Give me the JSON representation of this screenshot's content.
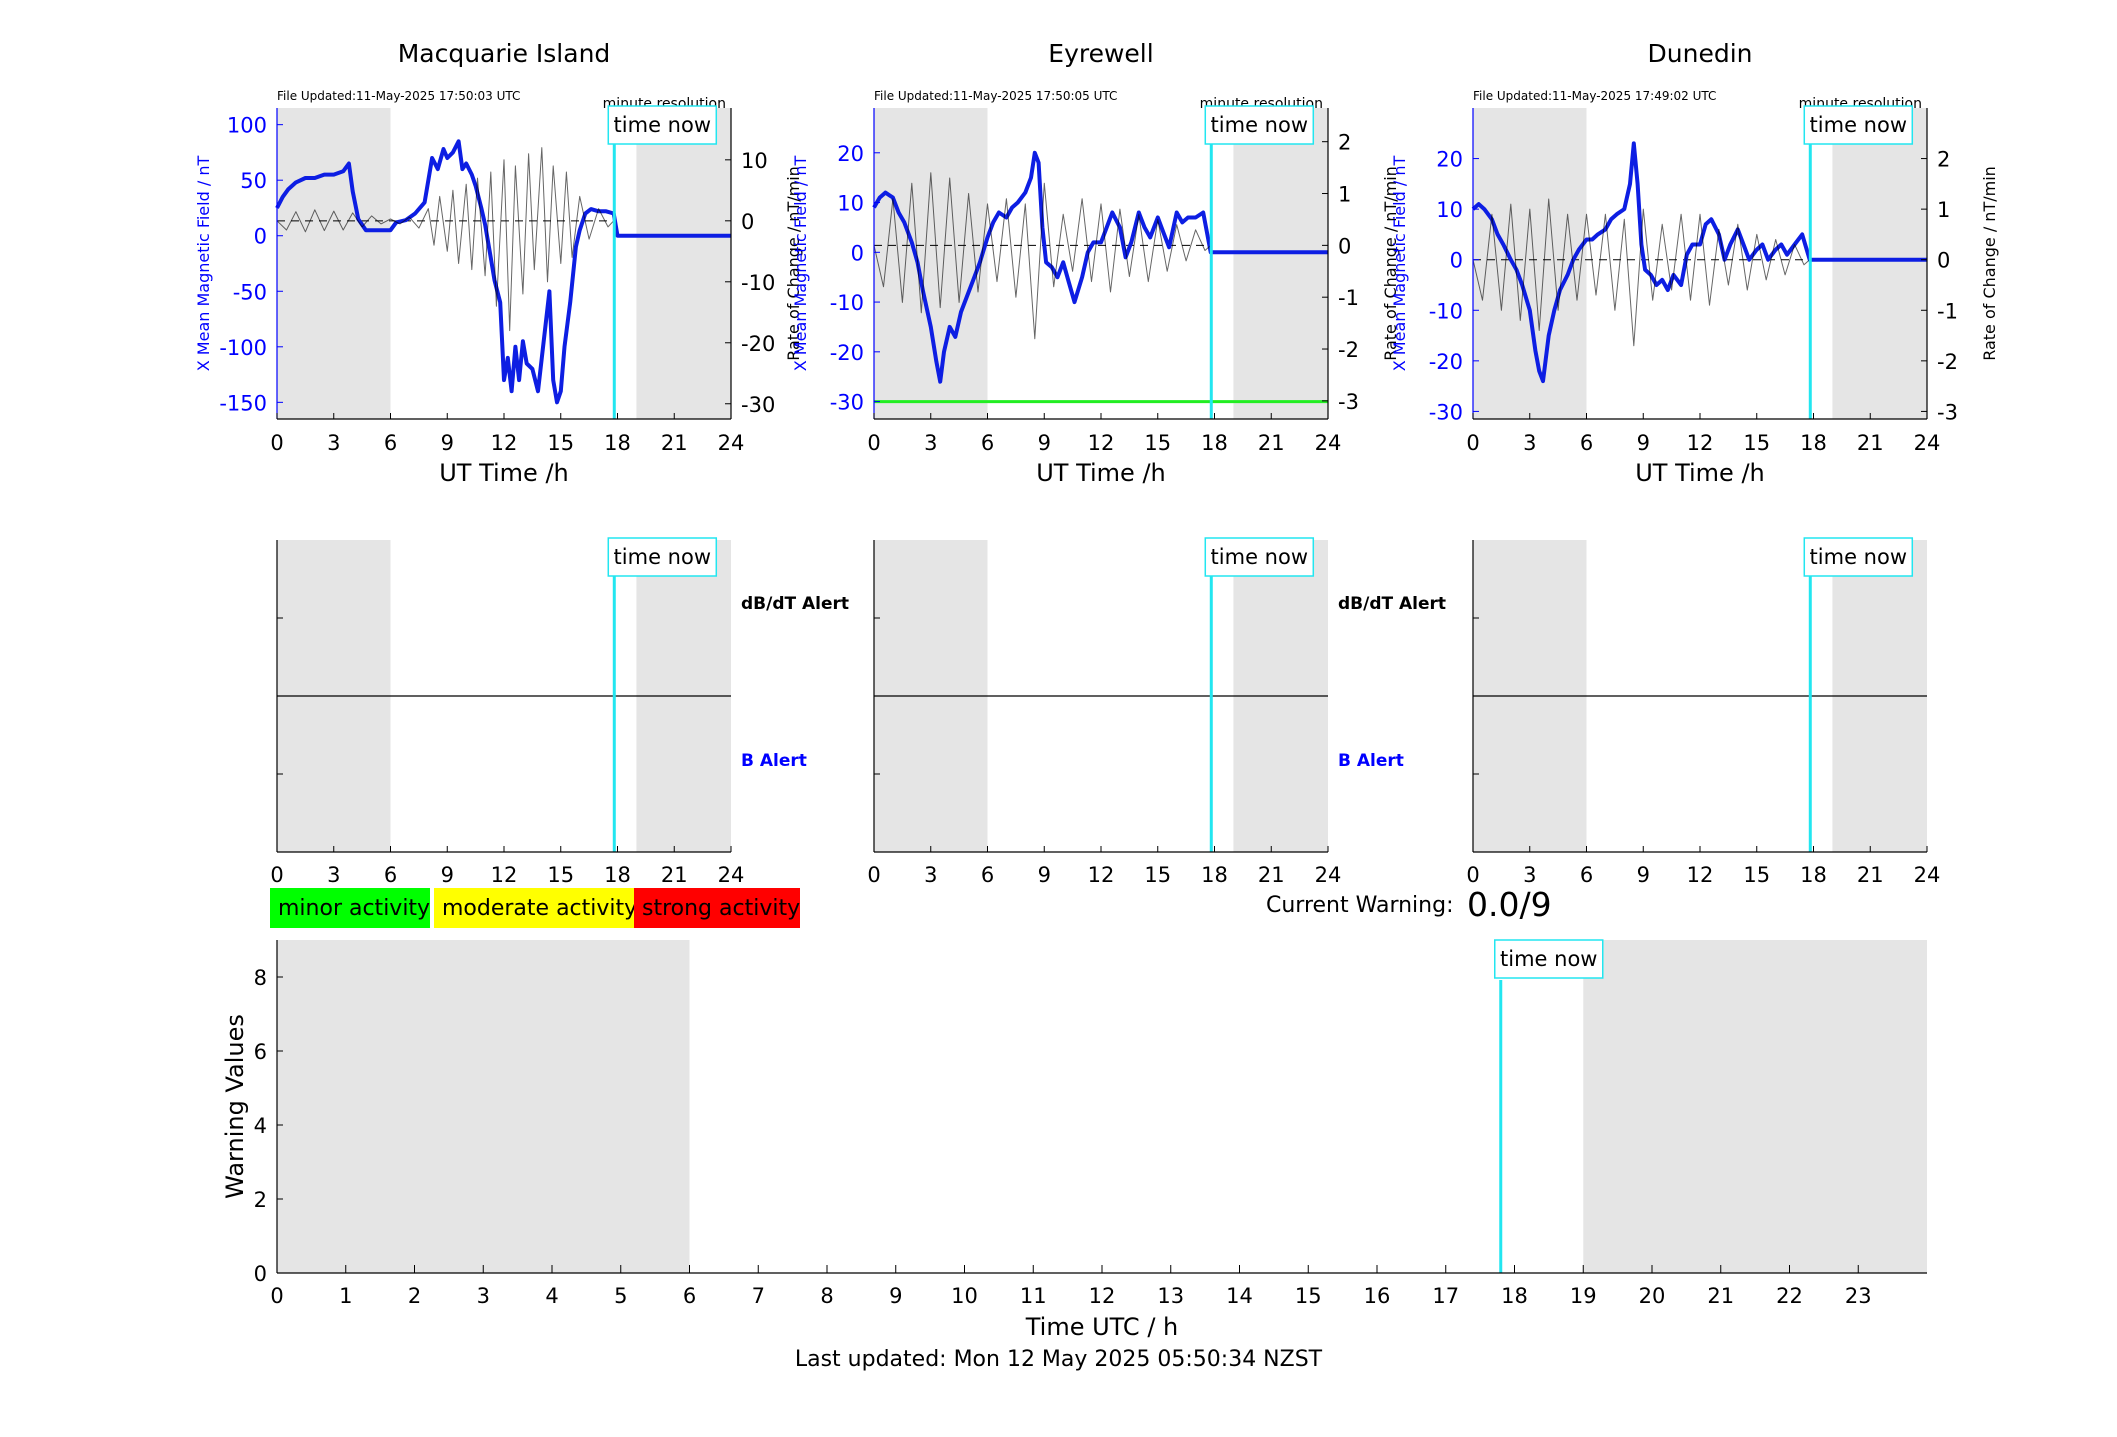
{
  "chart_data": [
    {
      "type": "line",
      "station": "Macquarie Island",
      "title": "Macquarie Island",
      "file_updated": "File Updated:11-May-2025 17:50:03 UTC",
      "resolution_label": "minute resolution",
      "time_now_label": "time now",
      "xlabel": "UT Time /h",
      "ylabel_left": "X Mean Magnetic Field / nT",
      "ylabel_right": "Rate of Change / nT/min",
      "xlim": [
        0,
        24
      ],
      "xticks": [
        0,
        3,
        6,
        9,
        12,
        15,
        18,
        21,
        24
      ],
      "ylim_left": [
        -165,
        115
      ],
      "yticks_left": [
        100,
        50,
        0,
        -50,
        -100,
        -150
      ],
      "ylim_right": [
        -32.5,
        18.5
      ],
      "yticks_right": [
        10,
        0,
        -10,
        -20,
        -30
      ],
      "night_shading": [
        [
          0,
          6
        ],
        [
          19,
          24
        ]
      ],
      "time_now": 17.83,
      "grid": false,
      "series": [
        {
          "name": "X Mean Magnetic Field",
          "axis": "left",
          "color": "#0d1ee3",
          "x": [
            0,
            0.3,
            0.6,
            1,
            1.5,
            2,
            2.5,
            3,
            3.5,
            3.8,
            4,
            4.3,
            4.7,
            5,
            5.5,
            6,
            6.3,
            6.8,
            7.3,
            7.8,
            8.2,
            8.5,
            8.8,
            9,
            9.3,
            9.6,
            9.8,
            10,
            10.3,
            10.5,
            10.8,
            11,
            11.3,
            11.5,
            11.8,
            12,
            12.2,
            12.4,
            12.6,
            12.8,
            13,
            13.2,
            13.5,
            13.8,
            14,
            14.2,
            14.4,
            14.6,
            14.8,
            15,
            15.2,
            15.5,
            15.8,
            16,
            16.3,
            16.6,
            17,
            17.4,
            17.8,
            18,
            19,
            20,
            21,
            22,
            23,
            24
          ],
          "values": [
            25,
            35,
            42,
            48,
            52,
            52,
            55,
            55,
            58,
            65,
            40,
            15,
            5,
            5,
            5,
            5,
            12,
            14,
            20,
            30,
            70,
            60,
            78,
            70,
            75,
            85,
            60,
            65,
            55,
            45,
            25,
            10,
            -20,
            -40,
            -60,
            -130,
            -110,
            -140,
            -100,
            -130,
            -95,
            -115,
            -120,
            -140,
            -110,
            -80,
            -50,
            -130,
            -150,
            -140,
            -100,
            -60,
            -10,
            5,
            20,
            24,
            22,
            22,
            20,
            0,
            0,
            0,
            0,
            0,
            0,
            0
          ]
        },
        {
          "name": "Rate of Change",
          "axis": "right",
          "color": "#000000",
          "x": [
            0,
            0.5,
            1,
            1.5,
            2,
            2.5,
            3,
            3.5,
            4,
            4.5,
            5,
            5.5,
            6,
            6.5,
            7,
            7.5,
            8,
            8.3,
            8.6,
            9,
            9.3,
            9.6,
            10,
            10.3,
            10.6,
            11,
            11.3,
            11.6,
            12,
            12.3,
            12.6,
            13,
            13.3,
            13.6,
            14,
            14.3,
            14.6,
            15,
            15.3,
            15.6,
            16,
            16.5,
            17,
            17.5,
            17.8
          ],
          "values": [
            0,
            -1.5,
            1.5,
            -1.8,
            1.8,
            -1.6,
            1.6,
            -1.5,
            1.3,
            -1,
            0.8,
            -0.5,
            0.3,
            -0.5,
            0.6,
            -1.2,
            2,
            -4,
            4,
            -5,
            5,
            -7,
            6,
            -8,
            7,
            -9,
            8,
            -14,
            10,
            -18,
            9,
            -12,
            11,
            -8,
            12,
            -10,
            9,
            -7,
            8,
            -6,
            4,
            -3,
            2,
            -1,
            0
          ]
        }
      ],
      "alert_panel": {
        "dbdt_label": "dB/dT Alert",
        "b_label": "B Alert",
        "xticks": [
          0,
          3,
          6,
          9,
          12,
          15,
          18,
          21,
          24
        ]
      }
    },
    {
      "type": "line",
      "station": "Eyrewell",
      "title": "Eyrewell",
      "file_updated": "File Updated:11-May-2025 17:50:05 UTC",
      "resolution_label": "minute resolution",
      "time_now_label": "time now",
      "xlabel": "UT Time /h",
      "ylabel_left": "X Mean Magnetic Field / nT",
      "ylabel_right": "Rate of Change / nT/min",
      "xlim": [
        0,
        24
      ],
      "xticks": [
        0,
        3,
        6,
        9,
        12,
        15,
        18,
        21,
        24
      ],
      "ylim_left": [
        -33.5,
        29
      ],
      "yticks_left": [
        20,
        10,
        0,
        -10,
        -20,
        -30
      ],
      "ylim_right": [
        -3.35,
        2.65
      ],
      "yticks_right": [
        2,
        1,
        0,
        -1,
        -2,
        -3
      ],
      "night_shading": [
        [
          0,
          6
        ],
        [
          19,
          24
        ]
      ],
      "time_now": 17.83,
      "threshold_line": {
        "value": -30,
        "color": "#22ee22"
      },
      "grid": false,
      "series": [
        {
          "name": "X Mean Magnetic Field",
          "axis": "left",
          "color": "#0d1ee3",
          "x": [
            0,
            0.3,
            0.6,
            1,
            1.3,
            1.6,
            2,
            2.3,
            2.6,
            3,
            3.3,
            3.5,
            3.7,
            4,
            4.3,
            4.6,
            5,
            5.3,
            5.6,
            6,
            6.3,
            6.6,
            7,
            7.3,
            7.6,
            8,
            8.3,
            8.5,
            8.7,
            8.9,
            9.1,
            9.4,
            9.7,
            10,
            10.3,
            10.6,
            11,
            11.3,
            11.6,
            12,
            12.3,
            12.6,
            13,
            13.3,
            13.6,
            14,
            14.3,
            14.6,
            15,
            15.3,
            15.6,
            16,
            16.3,
            16.6,
            17,
            17.4,
            17.8,
            18,
            19,
            20,
            21,
            22,
            23,
            24
          ],
          "values": [
            9,
            11,
            12,
            11,
            8,
            6,
            2,
            -2,
            -8,
            -15,
            -22,
            -26,
            -20,
            -15,
            -17,
            -12,
            -8,
            -5,
            -2,
            3,
            6,
            8,
            7,
            9,
            10,
            12,
            15,
            20,
            18,
            5,
            -2,
            -3,
            -5,
            -2,
            -6,
            -10,
            -5,
            0,
            2,
            2,
            5,
            8,
            5,
            -1,
            2,
            8,
            5,
            3,
            7,
            4,
            1,
            8,
            6,
            7,
            7,
            8,
            0,
            0,
            0,
            0,
            0,
            0,
            0,
            0
          ]
        },
        {
          "name": "Rate of Change",
          "axis": "right",
          "color": "#000000",
          "x": [
            0,
            0.5,
            1,
            1.5,
            2,
            2.5,
            3,
            3.5,
            4,
            4.5,
            5,
            5.5,
            6,
            6.5,
            7,
            7.5,
            8,
            8.5,
            9,
            9.5,
            10,
            10.5,
            11,
            11.5,
            12,
            12.5,
            13,
            13.5,
            14,
            14.5,
            15,
            15.5,
            16,
            16.5,
            17,
            17.5,
            17.8
          ],
          "values": [
            0,
            -0.8,
            0.9,
            -1.1,
            1.2,
            -1.3,
            1.4,
            -1.2,
            1.3,
            -1.1,
            1.0,
            -0.9,
            0.8,
            -0.7,
            0.9,
            -1.0,
            0.8,
            -1.8,
            1.2,
            -0.8,
            0.6,
            -0.5,
            0.9,
            -0.7,
            0.8,
            -0.9,
            0.7,
            -0.6,
            0.6,
            -0.7,
            0.5,
            -0.5,
            0.4,
            -0.3,
            0.3,
            -0.1,
            0
          ]
        }
      ],
      "alert_panel": {
        "dbdt_label": "dB/dT Alert",
        "b_label": "B Alert",
        "xticks": [
          0,
          3,
          6,
          9,
          12,
          15,
          18,
          21,
          24
        ]
      }
    },
    {
      "type": "line",
      "station": "Dunedin",
      "title": "Dunedin",
      "file_updated": "File Updated:11-May-2025 17:49:02 UTC",
      "resolution_label": "minute resolution",
      "time_now_label": "time now",
      "xlabel": "UT Time /h",
      "ylabel_left": "X Mean Magnetic Field / nT",
      "ylabel_right": "Rate of Change / nT/min",
      "xlim": [
        0,
        24
      ],
      "xticks": [
        0,
        3,
        6,
        9,
        12,
        15,
        18,
        21,
        24
      ],
      "ylim_left": [
        -31.5,
        30
      ],
      "yticks_left": [
        20,
        10,
        0,
        -10,
        -20,
        -30
      ],
      "ylim_right": [
        -3.15,
        3.0
      ],
      "yticks_right": [
        2,
        1,
        0,
        -1,
        -2,
        -3
      ],
      "night_shading": [
        [
          0,
          6
        ],
        [
          19,
          24
        ]
      ],
      "time_now": 17.83,
      "grid": false,
      "series": [
        {
          "name": "X Mean Magnetic Field",
          "axis": "left",
          "color": "#0d1ee3",
          "x": [
            0,
            0.3,
            0.6,
            1,
            1.3,
            1.6,
            2,
            2.3,
            2.6,
            3,
            3.3,
            3.5,
            3.7,
            4,
            4.3,
            4.6,
            5,
            5.3,
            5.6,
            6,
            6.3,
            6.6,
            7,
            7.3,
            7.6,
            8,
            8.3,
            8.5,
            8.7,
            8.9,
            9.1,
            9.4,
            9.7,
            10,
            10.3,
            10.6,
            11,
            11.3,
            11.6,
            12,
            12.3,
            12.6,
            13,
            13.3,
            13.6,
            14,
            14.3,
            14.6,
            15,
            15.3,
            15.6,
            16,
            16.3,
            16.6,
            17,
            17.4,
            17.8,
            18,
            19,
            20,
            21,
            22,
            23,
            24
          ],
          "values": [
            10,
            11,
            10,
            8,
            5,
            3,
            0,
            -2,
            -5,
            -10,
            -18,
            -22,
            -24,
            -15,
            -10,
            -6,
            -3,
            0,
            2,
            4,
            4,
            5,
            6,
            8,
            9,
            10,
            15,
            23,
            15,
            3,
            -2,
            -3,
            -5,
            -4,
            -6,
            -3,
            -5,
            1,
            3,
            3,
            7,
            8,
            5,
            0,
            3,
            6,
            3,
            0,
            2,
            3,
            0,
            2,
            3,
            1,
            3,
            5,
            0,
            0,
            0,
            0,
            0,
            0,
            0,
            0
          ]
        },
        {
          "name": "Rate of Change",
          "axis": "right",
          "color": "#000000",
          "x": [
            0,
            0.5,
            1,
            1.5,
            2,
            2.5,
            3,
            3.5,
            4,
            4.5,
            5,
            5.5,
            6,
            6.5,
            7,
            7.5,
            8,
            8.5,
            9,
            9.5,
            10,
            10.5,
            11,
            11.5,
            12,
            12.5,
            13,
            13.5,
            14,
            14.5,
            15,
            15.5,
            16,
            16.5,
            17,
            17.5,
            17.8
          ],
          "values": [
            0,
            -0.8,
            0.9,
            -1.0,
            1.1,
            -1.2,
            1.0,
            -1.4,
            1.2,
            -1.0,
            0.9,
            -0.8,
            0.9,
            -0.7,
            0.9,
            -1.0,
            0.8,
            -1.7,
            1.0,
            -0.8,
            0.7,
            -0.6,
            0.9,
            -0.8,
            0.9,
            -0.9,
            0.6,
            -0.5,
            0.7,
            -0.6,
            0.5,
            -0.4,
            0.4,
            -0.3,
            0.3,
            -0.1,
            0
          ]
        }
      ],
      "alert_panel": {
        "dbdt_label": "",
        "b_label": "",
        "xticks": [
          0,
          3,
          6,
          9,
          12,
          15,
          18,
          21,
          24
        ]
      }
    },
    {
      "type": "line",
      "title": "",
      "xlabel": "Time UTC / h",
      "ylabel": "Warning Values",
      "xlim": [
        0,
        24
      ],
      "xticks": [
        0,
        1,
        2,
        3,
        4,
        5,
        6,
        7,
        8,
        9,
        10,
        11,
        12,
        13,
        14,
        15,
        16,
        17,
        18,
        19,
        20,
        21,
        22,
        23
      ],
      "ylim": [
        0,
        9
      ],
      "yticks": [
        0,
        2,
        4,
        6,
        8
      ],
      "night_shading": [
        [
          0,
          6
        ],
        [
          19,
          24
        ]
      ],
      "time_now": 17.8,
      "time_now_label": "time now",
      "grid": false,
      "series": []
    }
  ],
  "activity_legend": [
    {
      "label": "minor activity",
      "color": "#00ff00"
    },
    {
      "label": "moderate activity",
      "color": "#ffff00"
    },
    {
      "label": "strong activity",
      "color": "#ff0000"
    }
  ],
  "current_warning": {
    "label": "Current Warning:",
    "value": "0.0/9"
  },
  "last_updated": "Last updated: Mon 12 May 2025 05:50:34 NZST",
  "colors": {
    "night_shade": "#e5e5e5",
    "time_now": "#22e6f0",
    "field": "#0d1ee3",
    "axis_blue": "#0000ff"
  }
}
